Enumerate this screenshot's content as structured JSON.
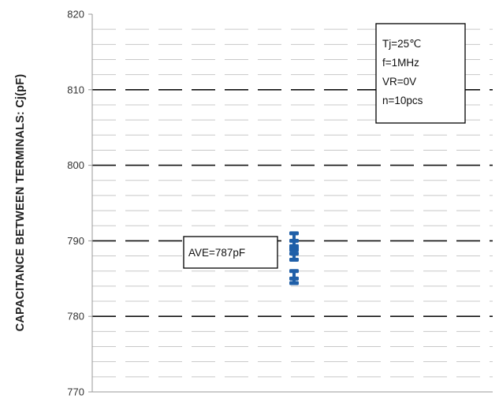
{
  "chart_data": {
    "type": "scatter",
    "title": "",
    "xlabel": "",
    "ylabel": "CAPACITANCE BETWEEN TERMINALS: Cj(pF)",
    "ylim": [
      770,
      820
    ],
    "yticks": [
      770,
      780,
      790,
      800,
      810,
      820
    ],
    "grid": true,
    "series": [
      {
        "values": [
          791,
          790,
          789.3,
          789,
          788.8,
          788.3,
          787.5,
          786,
          785,
          784.4
        ]
      }
    ],
    "annotations": [
      {
        "text": "AVE=787pF"
      },
      {
        "lines": [
          "Tj=25℃",
          "f=1MHz",
          "VR=0V",
          "n=10pcs"
        ]
      }
    ],
    "colors": {
      "points": "#1f5fa8",
      "grid_major": "#111111",
      "grid_minor": "#c8c8c8"
    }
  }
}
